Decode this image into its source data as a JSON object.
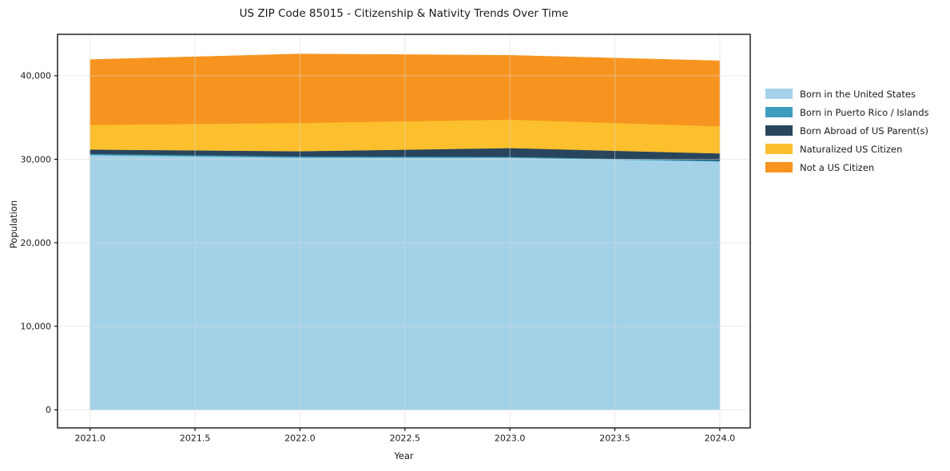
{
  "window": {
    "background": "#ffffff"
  },
  "chart_data": {
    "type": "area",
    "stacked": true,
    "title": "US ZIP Code 85015 - Citizenship & Nativity Trends Over Time",
    "xlabel": "Year",
    "ylabel": "Population",
    "x": [
      2021,
      2022,
      2023,
      2024
    ],
    "series": [
      {
        "name": "Born in the United States",
        "color": "#a3d2e8",
        "values": [
          30500,
          30200,
          30200,
          29750
        ]
      },
      {
        "name": "Born in Puerto Rico / Islands",
        "color": "#3d9dbd",
        "values": [
          150,
          150,
          100,
          100
        ]
      },
      {
        "name": "Born Abroad of US Parent(s)",
        "color": "#28455c",
        "values": [
          520,
          620,
          1050,
          860
        ]
      },
      {
        "name": "Naturalized US Citizen",
        "color": "#fcbf2d",
        "values": [
          2960,
          3390,
          3410,
          3250
        ]
      },
      {
        "name": "Not a US Citizen",
        "color": "#f7941f",
        "values": [
          7800,
          8250,
          7680,
          7830
        ]
      }
    ],
    "totals": [
      41930,
      42610,
      42440,
      41790
    ],
    "xlim": [
      2020.845,
      2024.145
    ],
    "ylim": [
      -2170,
      44960
    ],
    "xticks": {
      "values": [
        2021.0,
        2021.5,
        2022.0,
        2022.5,
        2023.0,
        2023.5,
        2024.0
      ],
      "labels": [
        "2021.0",
        "2021.5",
        "2022.0",
        "2022.5",
        "2023.0",
        "2023.5",
        "2024.0"
      ]
    },
    "yticks": {
      "values": [
        0,
        10000,
        20000,
        30000,
        40000
      ],
      "labels": [
        "0",
        "10,000",
        "20,000",
        "30,000",
        "40,000"
      ]
    },
    "grid": true,
    "grid_color": "#d9d9d9",
    "axis_color": "#000000",
    "text_color": "#1a1a1a",
    "legend_position": "right-outside"
  }
}
